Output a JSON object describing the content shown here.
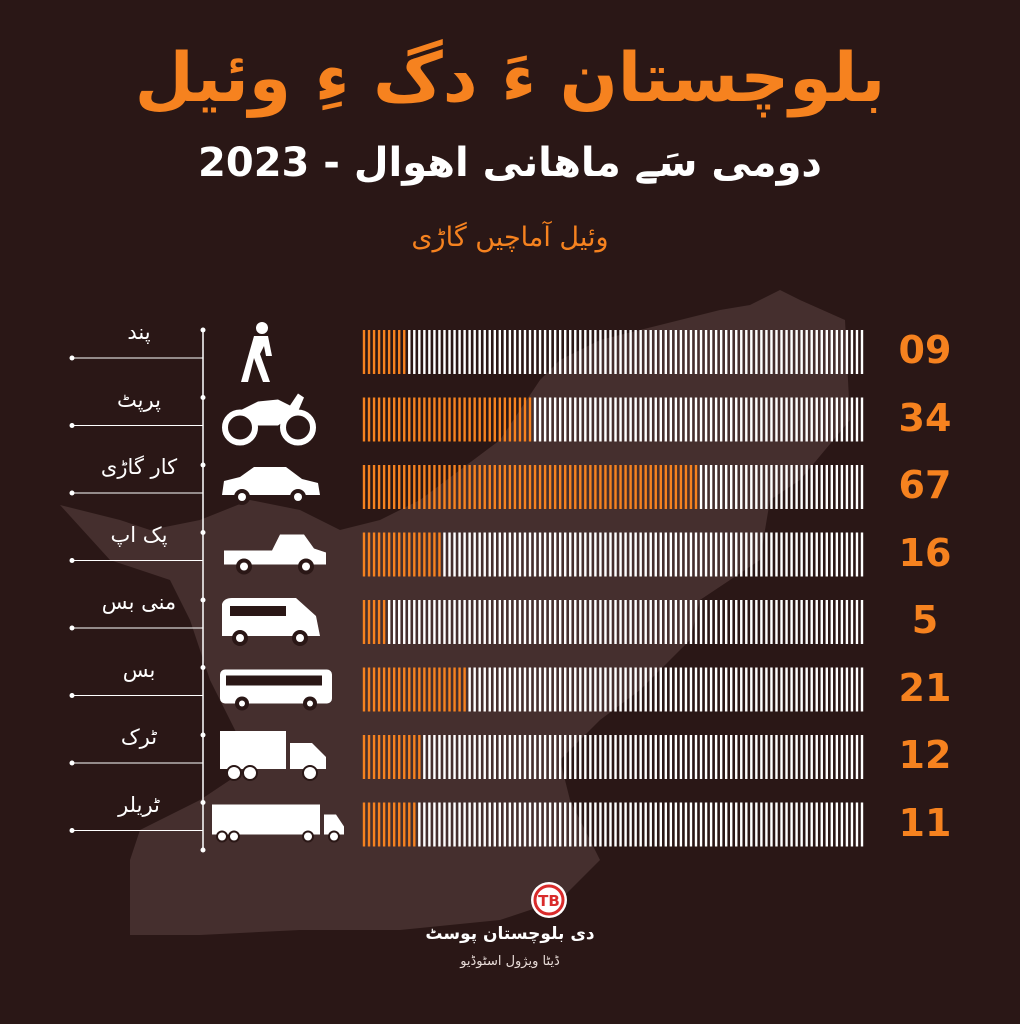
{
  "header": {
    "title": "بلوچستان ءَ دگ ءِ وئیل",
    "subtitle": "دومی سَے ماهانی اهوال - 2023",
    "subtitle2": "وئیل آماچیں گاڑی"
  },
  "chart_data": {
    "type": "bar",
    "orientation": "horizontal",
    "categories": [
      "پند",
      "پرپٹ",
      "کار گاڑی",
      "پک اپ",
      "منی بس",
      "بس",
      "ٹرک",
      "ٹریلر"
    ],
    "values": [
      9,
      34,
      67,
      16,
      5,
      21,
      12,
      11
    ],
    "value_labels": [
      "09",
      "34",
      "67",
      "16",
      "5",
      "21",
      "12",
      "11"
    ],
    "icons": [
      "pedestrian-icon",
      "motorcycle-icon",
      "car-icon",
      "pickup-icon",
      "minibus-icon",
      "bus-icon",
      "truck-icon",
      "trailer-icon"
    ],
    "title": "بلوچستان ءَ دگ ءِ وئیل",
    "subtitle": "دومی سَے ماهانی اهوال - 2023",
    "colors": {
      "filled": "#f6821f",
      "empty": "#ffffff",
      "background": "#2a1716",
      "map": "#4a3433"
    }
  },
  "footer": {
    "brand": "دی بلوچستان پوسٹ",
    "sub": "ڈیٹا ویژول اسٹوڈیو",
    "logo_text": "TB"
  }
}
